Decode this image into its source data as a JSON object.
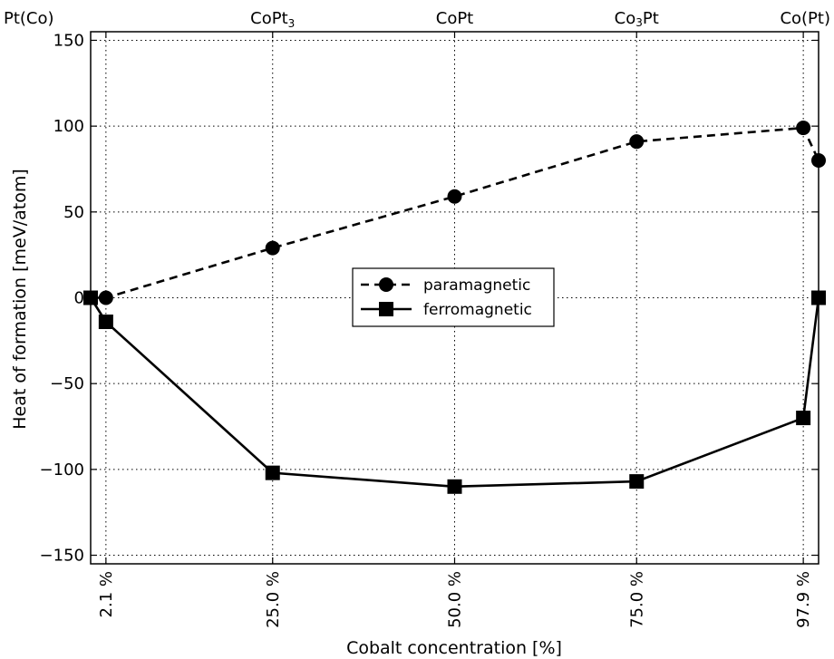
{
  "chart_data": {
    "type": "line",
    "xlabel": "Cobalt concentration [%]",
    "ylabel": "Heat of formation [meV/atom]",
    "xlim": [
      0.0,
      100.0
    ],
    "ylim": [
      -155,
      155
    ],
    "x_ticks": [
      2.1,
      25.0,
      50.0,
      75.0,
      97.9
    ],
    "x_tick_labels": [
      "2.1 %",
      "25.0 %",
      "50.0 %",
      "75.0 %",
      "97.9 %"
    ],
    "y_ticks": [
      150,
      100,
      50,
      0,
      -50,
      -100,
      -150
    ],
    "y_tick_labels": [
      "150",
      "100",
      "50",
      "0",
      "−50",
      "−100",
      "−150"
    ],
    "top_labels": [
      {
        "x": 2.1,
        "label": "Pt(Co)"
      },
      {
        "x": 25.0,
        "label": "CoPt",
        "sub": "3"
      },
      {
        "x": 50.0,
        "label": "CoPt"
      },
      {
        "x": 75.0,
        "label_pre": "Co",
        "sub": "3",
        "label_post": "Pt"
      },
      {
        "x": 97.9,
        "label": "Co(Pt)"
      }
    ],
    "grid": true,
    "legend_position": "center",
    "series": [
      {
        "name": "paramagnetic",
        "line": "dashed",
        "marker": "circle",
        "color": "#000000",
        "x": [
          0.0,
          2.1,
          25.0,
          50.0,
          75.0,
          97.9,
          100.0
        ],
        "y": [
          0,
          0,
          29,
          59,
          91,
          99,
          80
        ]
      },
      {
        "name": "ferromagnetic",
        "line": "solid",
        "marker": "square",
        "color": "#000000",
        "x": [
          0.0,
          2.1,
          25.0,
          50.0,
          75.0,
          97.9,
          100.0
        ],
        "y": [
          0,
          -14,
          -102,
          -110,
          -107,
          -70,
          0
        ]
      }
    ]
  }
}
